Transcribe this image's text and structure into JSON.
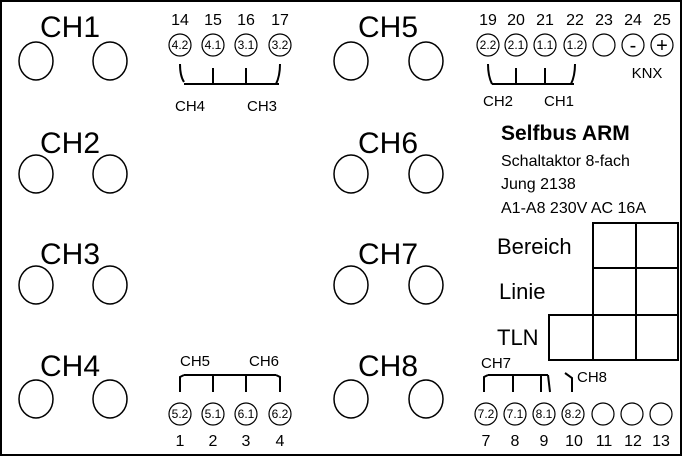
{
  "channels": [
    {
      "label": "CH1"
    },
    {
      "label": "CH2"
    },
    {
      "label": "CH3"
    },
    {
      "label": "CH4"
    },
    {
      "label": "CH5"
    },
    {
      "label": "CH6"
    },
    {
      "label": "CH7"
    },
    {
      "label": "CH8"
    }
  ],
  "terminals": {
    "top_left": [
      {
        "num": "14",
        "label": "4.2"
      },
      {
        "num": "15",
        "label": "4.1"
      },
      {
        "num": "16",
        "label": "3.1"
      },
      {
        "num": "17",
        "label": "3.2"
      }
    ],
    "top_right": [
      {
        "num": "19",
        "label": "2.2"
      },
      {
        "num": "20",
        "label": "2.1"
      },
      {
        "num": "21",
        "label": "1.1"
      },
      {
        "num": "22",
        "label": "1.2"
      }
    ],
    "bus": [
      {
        "num": "23",
        "label": ""
      },
      {
        "num": "24",
        "label": "-"
      },
      {
        "num": "25",
        "label": "+"
      }
    ],
    "bottom_left": [
      {
        "num": "1",
        "label": "5.2"
      },
      {
        "num": "2",
        "label": "5.1"
      },
      {
        "num": "3",
        "label": "6.1"
      },
      {
        "num": "4",
        "label": "6.2"
      }
    ],
    "bottom_right": [
      {
        "num": "7",
        "label": "7.2"
      },
      {
        "num": "8",
        "label": "7.1"
      },
      {
        "num": "9",
        "label": "8.1"
      },
      {
        "num": "10",
        "label": "8.2"
      },
      {
        "num": "11",
        "label": ""
      },
      {
        "num": "12",
        "label": ""
      },
      {
        "num": "13",
        "label": ""
      }
    ]
  },
  "groups": {
    "top_left": [
      "CH4",
      "CH3"
    ],
    "top_right": [
      "CH2",
      "CH1"
    ],
    "bottom_left": [
      "CH5",
      "CH6"
    ],
    "bottom_right": [
      "CH7",
      "CH8"
    ]
  },
  "bus_label": "KNX",
  "info": {
    "title": "Selfbus ARM",
    "lines": [
      "Schaltaktor 8-fach",
      "Jung 2138",
      "A1-A8 230V AC 16A"
    ]
  },
  "address": {
    "labels": [
      "Bereich",
      "Linie",
      "TLN"
    ]
  }
}
